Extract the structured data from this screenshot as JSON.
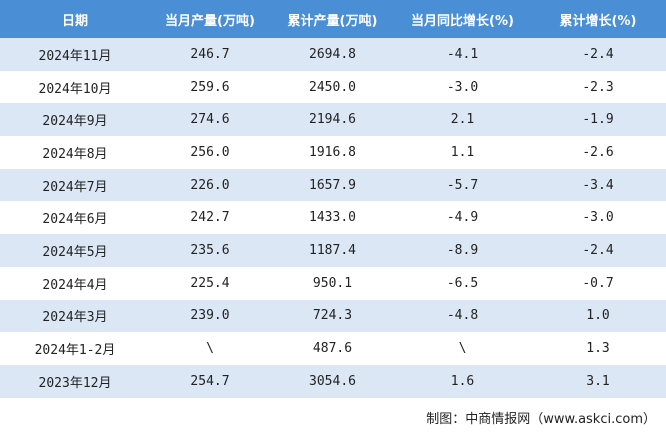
{
  "table": {
    "header": [
      "日期",
      "当月产量(万吨)",
      "累计产量(万吨)",
      "当月同比增长(%)",
      "累计增长(%)"
    ],
    "rows": [
      [
        "2024年11月",
        "246.7",
        "2694.8",
        "-4.1",
        "-2.4"
      ],
      [
        "2024年10月",
        "259.6",
        "2450.0",
        "-3.0",
        "-2.3"
      ],
      [
        "2024年9月",
        "274.6",
        "2194.6",
        "2.1",
        "-1.9"
      ],
      [
        "2024年8月",
        "256.0",
        "1916.8",
        "1.1",
        "-2.6"
      ],
      [
        "2024年7月",
        "226.0",
        "1657.9",
        "-5.7",
        "-3.4"
      ],
      [
        "2024年6月",
        "242.7",
        "1433.0",
        "-4.9",
        "-3.0"
      ],
      [
        "2024年5月",
        "235.6",
        "1187.4",
        "-8.9",
        "-2.4"
      ],
      [
        "2024年4月",
        "225.4",
        "950.1",
        "-6.5",
        "-0.7"
      ],
      [
        "2024年3月",
        "239.0",
        "724.3",
        "-4.8",
        "1.0"
      ],
      [
        "2024年1-2月",
        "\\",
        "487.6",
        "\\",
        "1.3"
      ],
      [
        "2023年12月",
        "254.7",
        "3054.6",
        "1.6",
        "3.1"
      ]
    ]
  },
  "footer": "制图：中商情报网（www.askci.com）"
}
